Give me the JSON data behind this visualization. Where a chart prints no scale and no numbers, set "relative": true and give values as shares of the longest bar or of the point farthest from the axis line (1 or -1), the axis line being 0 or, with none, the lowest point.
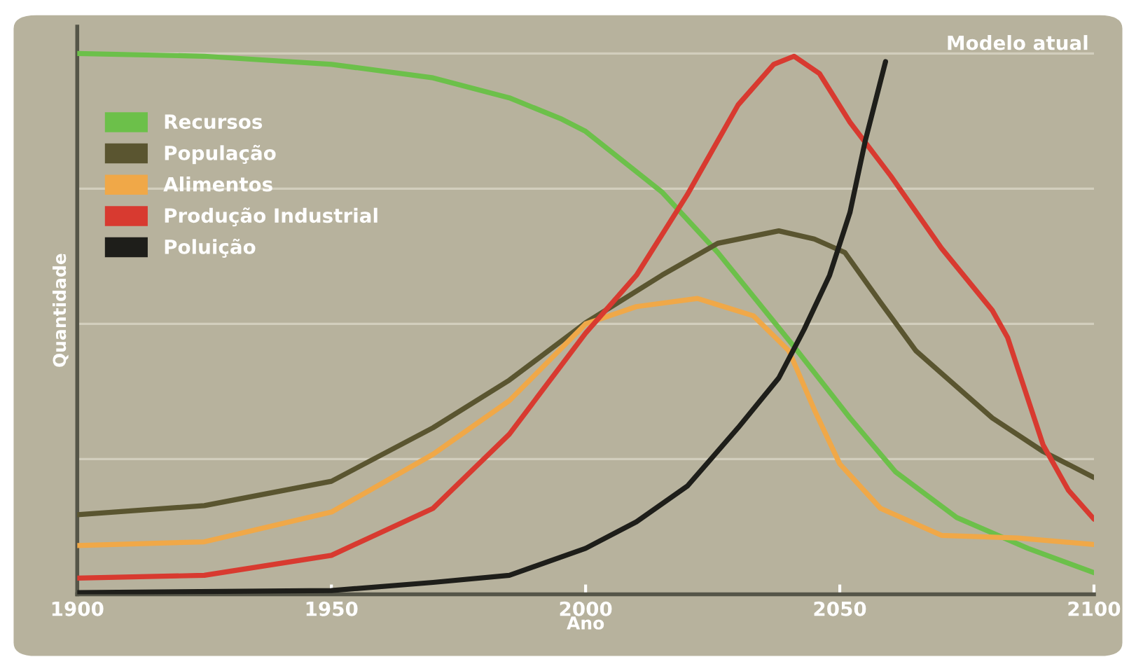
{
  "chart_data": {
    "type": "line",
    "title": "Modelo atual",
    "xlabel": "Ano",
    "ylabel": "Quantidade",
    "relative": true,
    "grid": "y",
    "legend": "top left",
    "tick_labels": "x",
    "marker": "none",
    "line_style": "solid",
    "xlim": [
      1900,
      2100
    ],
    "xticks": [
      1900,
      1950,
      2000,
      2050,
      2100
    ],
    "series": [
      {
        "name": "Recursos",
        "color": "#6cc04a",
        "x": [
          1900,
          1925,
          1950,
          1970,
          1985,
          1995,
          2000,
          2015,
          2026,
          2041,
          2052,
          2061,
          2073,
          2087,
          2100
        ],
        "values": [
          1.0,
          0.995,
          0.98,
          0.955,
          0.918,
          0.88,
          0.856,
          0.744,
          0.632,
          0.458,
          0.326,
          0.226,
          0.142,
          0.085,
          0.04
        ]
      },
      {
        "name": "População",
        "color": "#5a5530",
        "x": [
          1900,
          1925,
          1950,
          1970,
          1985,
          2000,
          2015,
          2026,
          2038,
          2045,
          2051,
          2058,
          2065,
          2080,
          2090,
          2100
        ],
        "values": [
          0.147,
          0.164,
          0.209,
          0.308,
          0.396,
          0.502,
          0.59,
          0.649,
          0.672,
          0.657,
          0.632,
          0.54,
          0.45,
          0.326,
          0.264,
          0.216
        ]
      },
      {
        "name": "Alimentos",
        "color": "#f0a848",
        "x": [
          1900,
          1925,
          1950,
          1970,
          1985,
          2000,
          2010,
          2022,
          2033,
          2040,
          2045,
          2050,
          2058,
          2070,
          2085,
          2100
        ],
        "values": [
          0.09,
          0.097,
          0.152,
          0.259,
          0.358,
          0.5,
          0.532,
          0.547,
          0.515,
          0.45,
          0.341,
          0.241,
          0.159,
          0.109,
          0.104,
          0.092
        ]
      },
      {
        "name": "Produção Industrial",
        "color": "#d83a30",
        "x": [
          1900,
          1925,
          1950,
          1970,
          1985,
          2000,
          2010,
          2020,
          2030,
          2037,
          2041,
          2046,
          2052,
          2060,
          2070,
          2080,
          2083,
          2090,
          2095,
          2100
        ],
        "values": [
          0.03,
          0.035,
          0.072,
          0.159,
          0.296,
          0.483,
          0.59,
          0.739,
          0.905,
          0.98,
          0.995,
          0.963,
          0.873,
          0.774,
          0.64,
          0.525,
          0.475,
          0.276,
          0.192,
          0.139
        ]
      },
      {
        "name": "Poluição",
        "color": "#1e1e1a",
        "x": [
          1900,
          1950,
          1970,
          1985,
          2000,
          2010,
          2020,
          2030,
          2038,
          2043,
          2048,
          2052,
          2055,
          2059
        ],
        "values": [
          0.003,
          0.007,
          0.022,
          0.035,
          0.085,
          0.134,
          0.2,
          0.308,
          0.4,
          0.49,
          0.59,
          0.706,
          0.838,
          0.985
        ]
      }
    ]
  }
}
